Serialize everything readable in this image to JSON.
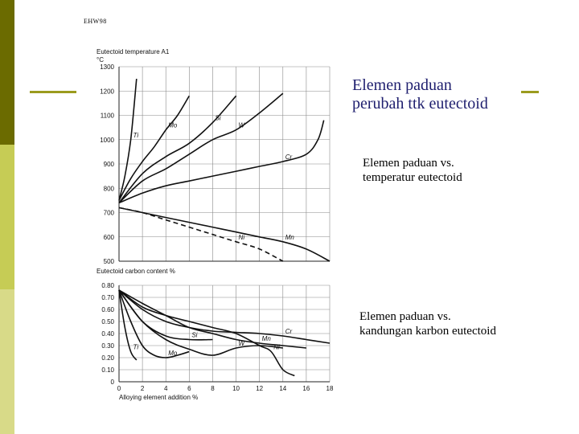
{
  "slide": {
    "author": "EHW98",
    "title_line1": "Elemen paduan",
    "title_line2": "perubah ttk eutectoid",
    "caption_top_line1": "Elemen paduan vs.",
    "caption_top_line2": "temperatur eutectoid",
    "caption_bottom_line1": "Elemen paduan vs.",
    "caption_bottom_line2": "kandungan karbon eutectoid",
    "colors": {
      "bar_dark": "#6b6b00",
      "bar_mid": "#c6cc55",
      "bar_light": "#d8da88",
      "title_text": "#1e1e6e",
      "deco_line": "#9b9b1e"
    }
  },
  "chart_data": [
    {
      "type": "line",
      "ylabel": "Eutectoid temperature A1",
      "yunit": "°C",
      "ylim": [
        500,
        1300
      ],
      "yticks": [
        500,
        600,
        700,
        800,
        900,
        1000,
        1100,
        1200,
        1300
      ],
      "xlim": [
        0,
        18
      ],
      "grid": true,
      "series": [
        {
          "name": "Ti",
          "dashed": false,
          "points": [
            [
              0,
              750
            ],
            [
              0.5,
              850
            ],
            [
              1,
              1000
            ],
            [
              1.5,
              1250
            ]
          ]
        },
        {
          "name": "Mo",
          "dashed": false,
          "points": [
            [
              0,
              750
            ],
            [
              1,
              840
            ],
            [
              2,
              910
            ],
            [
              3,
              970
            ],
            [
              4,
              1040
            ],
            [
              5,
              1100
            ],
            [
              6,
              1180
            ]
          ]
        },
        {
          "name": "Si",
          "dashed": false,
          "points": [
            [
              0,
              740
            ],
            [
              2,
              860
            ],
            [
              4,
              930
            ],
            [
              6,
              985
            ],
            [
              8,
              1070
            ],
            [
              10,
              1180
            ]
          ]
        },
        {
          "name": "W",
          "dashed": false,
          "points": [
            [
              0,
              740
            ],
            [
              2,
              830
            ],
            [
              4,
              880
            ],
            [
              6,
              940
            ],
            [
              8,
              1000
            ],
            [
              10,
              1040
            ],
            [
              12,
              1110
            ],
            [
              14,
              1190
            ]
          ]
        },
        {
          "name": "Cr",
          "dashed": false,
          "points": [
            [
              0,
              740
            ],
            [
              2,
              780
            ],
            [
              4,
              810
            ],
            [
              6,
              830
            ],
            [
              8,
              850
            ],
            [
              10,
              870
            ],
            [
              12,
              890
            ],
            [
              14,
              910
            ],
            [
              16,
              940
            ],
            [
              17,
              1000
            ],
            [
              17.5,
              1080
            ]
          ]
        },
        {
          "name": "Mn",
          "dashed": false,
          "points": [
            [
              0,
              720
            ],
            [
              2,
              700
            ],
            [
              4,
              680
            ],
            [
              6,
              660
            ],
            [
              8,
              640
            ],
            [
              10,
              620
            ],
            [
              12,
              600
            ],
            [
              14,
              580
            ],
            [
              16,
              550
            ],
            [
              18,
              500
            ]
          ]
        },
        {
          "name": "Ni",
          "dashed": true,
          "points": [
            [
              0,
              720
            ],
            [
              2,
              700
            ],
            [
              4,
              670
            ],
            [
              6,
              640
            ],
            [
              8,
              610
            ],
            [
              10,
              580
            ],
            [
              12,
              550
            ],
            [
              14,
              500
            ]
          ]
        }
      ]
    },
    {
      "type": "line",
      "ylabel": "Eutectoid carbon content %",
      "xlabel": "Alloying element addition %",
      "ylim": [
        0,
        0.8
      ],
      "yticks": [
        "0",
        "0.10",
        "0.20",
        "0.30",
        "0.40",
        "0.50",
        "0.60",
        "0.70",
        "0.80"
      ],
      "xticks": [
        0,
        2,
        4,
        6,
        8,
        10,
        12,
        14,
        16,
        18
      ],
      "xlim": [
        0,
        18
      ],
      "grid": true,
      "series": [
        {
          "name": "Ti",
          "points": [
            [
              0,
              0.76
            ],
            [
              0.5,
              0.45
            ],
            [
              1,
              0.25
            ],
            [
              1.5,
              0.18
            ]
          ]
        },
        {
          "name": "Mo",
          "points": [
            [
              0,
              0.76
            ],
            [
              1,
              0.5
            ],
            [
              2,
              0.3
            ],
            [
              3,
              0.22
            ],
            [
              4,
              0.2
            ],
            [
              5,
              0.22
            ],
            [
              6,
              0.25
            ]
          ]
        },
        {
          "name": "Si",
          "points": [
            [
              0,
              0.76
            ],
            [
              2,
              0.5
            ],
            [
              4,
              0.38
            ],
            [
              6,
              0.35
            ],
            [
              8,
              0.35
            ]
          ]
        },
        {
          "name": "W",
          "points": [
            [
              0,
              0.76
            ],
            [
              2,
              0.5
            ],
            [
              4,
              0.35
            ],
            [
              6,
              0.27
            ],
            [
              8,
              0.22
            ],
            [
              10,
              0.28
            ],
            [
              12,
              0.3
            ],
            [
              14,
              0.28
            ]
          ]
        },
        {
          "name": "Cr",
          "points": [
            [
              0,
              0.76
            ],
            [
              2,
              0.6
            ],
            [
              4,
              0.5
            ],
            [
              6,
              0.45
            ],
            [
              8,
              0.42
            ],
            [
              10,
              0.41
            ],
            [
              12,
              0.4
            ],
            [
              14,
              0.38
            ],
            [
              16,
              0.35
            ],
            [
              18,
              0.32
            ]
          ]
        },
        {
          "name": "Ni",
          "points": [
            [
              0,
              0.76
            ],
            [
              2,
              0.62
            ],
            [
              4,
              0.55
            ],
            [
              6,
              0.5
            ],
            [
              8,
              0.45
            ],
            [
              10,
              0.4
            ],
            [
              12,
              0.3
            ],
            [
              13,
              0.25
            ],
            [
              14,
              0.1
            ],
            [
              15,
              0.05
            ]
          ]
        },
        {
          "name": "Mn",
          "points": [
            [
              0,
              0.76
            ],
            [
              2,
              0.65
            ],
            [
              4,
              0.55
            ],
            [
              6,
              0.45
            ],
            [
              8,
              0.4
            ],
            [
              10,
              0.35
            ],
            [
              12,
              0.32
            ],
            [
              14,
              0.3
            ],
            [
              16,
              0.28
            ]
          ]
        }
      ]
    }
  ]
}
